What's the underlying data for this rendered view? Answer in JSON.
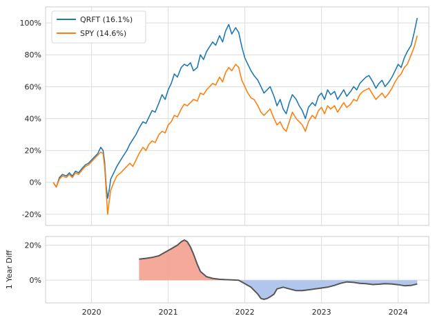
{
  "chart_data": [
    {
      "type": "line",
      "title": "",
      "xlabel": "",
      "ylabel": "",
      "x_ticks": [
        "2020",
        "2021",
        "2022",
        "2023",
        "2024"
      ],
      "y_ticks": [
        -20,
        0,
        20,
        40,
        60,
        80,
        100
      ],
      "y_tick_labels": [
        "-20%",
        "0%",
        "20%",
        "40%",
        "60%",
        "80%",
        "100%"
      ],
      "xlim": [
        2019.4,
        2024.4
      ],
      "ylim": [
        -27,
        110
      ],
      "legend": "top-left",
      "grid": true,
      "series": [
        {
          "name": "QRFT (16.1%)",
          "color": "#1f77b4",
          "x": [
            2019.5,
            2019.54,
            2019.58,
            2019.62,
            2019.67,
            2019.71,
            2019.75,
            2019.79,
            2019.83,
            2019.88,
            2019.92,
            2019.96,
            2020.0,
            2020.04,
            2020.08,
            2020.12,
            2020.15,
            2020.17,
            2020.19,
            2020.21,
            2020.23,
            2020.25,
            2020.29,
            2020.33,
            2020.38,
            2020.42,
            2020.46,
            2020.5,
            2020.54,
            2020.58,
            2020.62,
            2020.67,
            2020.71,
            2020.75,
            2020.79,
            2020.83,
            2020.88,
            2020.92,
            2020.96,
            2021.0,
            2021.04,
            2021.08,
            2021.12,
            2021.17,
            2021.21,
            2021.25,
            2021.29,
            2021.33,
            2021.38,
            2021.42,
            2021.46,
            2021.5,
            2021.54,
            2021.58,
            2021.62,
            2021.67,
            2021.71,
            2021.75,
            2021.79,
            2021.83,
            2021.88,
            2021.92,
            2021.96,
            2022.0,
            2022.04,
            2022.08,
            2022.12,
            2022.17,
            2022.21,
            2022.25,
            2022.29,
            2022.33,
            2022.38,
            2022.42,
            2022.46,
            2022.5,
            2022.54,
            2022.58,
            2022.62,
            2022.67,
            2022.71,
            2022.75,
            2022.79,
            2022.83,
            2022.88,
            2022.92,
            2022.96,
            2023.0,
            2023.04,
            2023.08,
            2023.12,
            2023.17,
            2023.21,
            2023.25,
            2023.29,
            2023.33,
            2023.38,
            2023.42,
            2023.46,
            2023.5,
            2023.54,
            2023.58,
            2023.62,
            2023.67,
            2023.71,
            2023.75,
            2023.79,
            2023.83,
            2023.88,
            2023.92,
            2023.96,
            2024.0,
            2024.04,
            2024.08,
            2024.12,
            2024.17,
            2024.21,
            2024.25
          ],
          "values": [
            0,
            -3,
            3,
            5,
            4,
            6,
            4,
            7,
            6,
            9,
            11,
            12,
            14,
            16,
            18,
            22,
            20,
            13,
            -2,
            -10,
            -5,
            2,
            6,
            10,
            14,
            17,
            20,
            24,
            27,
            30,
            34,
            38,
            37,
            41,
            45,
            44,
            50,
            55,
            52,
            58,
            62,
            68,
            66,
            72,
            74,
            73,
            75,
            70,
            72,
            80,
            77,
            82,
            85,
            88,
            86,
            92,
            88,
            95,
            99,
            93,
            97,
            94,
            85,
            78,
            74,
            70,
            67,
            64,
            60,
            56,
            58,
            60,
            54,
            48,
            52,
            46,
            43,
            50,
            55,
            52,
            48,
            45,
            40,
            47,
            50,
            48,
            54,
            56,
            52,
            58,
            55,
            57,
            52,
            55,
            58,
            54,
            57,
            60,
            58,
            62,
            64,
            66,
            67,
            63,
            59,
            62,
            64,
            60,
            63,
            66,
            70,
            74,
            72,
            78,
            82,
            86,
            94,
            103
          ]
        },
        {
          "name": "SPY (14.6%)",
          "color": "#ff7f0e",
          "x": [
            2019.5,
            2019.54,
            2019.58,
            2019.62,
            2019.67,
            2019.71,
            2019.75,
            2019.79,
            2019.83,
            2019.88,
            2019.92,
            2019.96,
            2020.0,
            2020.04,
            2020.08,
            2020.12,
            2020.15,
            2020.17,
            2020.19,
            2020.21,
            2020.23,
            2020.25,
            2020.29,
            2020.33,
            2020.38,
            2020.42,
            2020.46,
            2020.5,
            2020.54,
            2020.58,
            2020.62,
            2020.67,
            2020.71,
            2020.75,
            2020.79,
            2020.83,
            2020.88,
            2020.92,
            2020.96,
            2021.0,
            2021.04,
            2021.08,
            2021.12,
            2021.17,
            2021.21,
            2021.25,
            2021.29,
            2021.33,
            2021.38,
            2021.42,
            2021.46,
            2021.5,
            2021.54,
            2021.58,
            2021.62,
            2021.67,
            2021.71,
            2021.75,
            2021.79,
            2021.83,
            2021.88,
            2021.92,
            2021.96,
            2022.0,
            2022.04,
            2022.08,
            2022.12,
            2022.17,
            2022.21,
            2022.25,
            2022.29,
            2022.33,
            2022.38,
            2022.42,
            2022.46,
            2022.5,
            2022.54,
            2022.58,
            2022.62,
            2022.67,
            2022.71,
            2022.75,
            2022.79,
            2022.83,
            2022.88,
            2022.92,
            2022.96,
            2023.0,
            2023.04,
            2023.08,
            2023.12,
            2023.17,
            2023.21,
            2023.25,
            2023.29,
            2023.33,
            2023.38,
            2023.42,
            2023.46,
            2023.5,
            2023.54,
            2023.58,
            2023.62,
            2023.67,
            2023.71,
            2023.75,
            2023.79,
            2023.83,
            2023.88,
            2023.92,
            2023.96,
            2024.0,
            2024.04,
            2024.08,
            2024.12,
            2024.17,
            2024.21,
            2024.25
          ],
          "values": [
            0,
            -3,
            2,
            4,
            3,
            5,
            3,
            6,
            5,
            8,
            10,
            11,
            13,
            15,
            17,
            19,
            18,
            10,
            -5,
            -20,
            -12,
            -5,
            0,
            4,
            6,
            8,
            10,
            12,
            10,
            14,
            18,
            22,
            20,
            24,
            26,
            25,
            30,
            32,
            31,
            36,
            38,
            42,
            41,
            46,
            49,
            48,
            50,
            52,
            51,
            56,
            55,
            58,
            60,
            62,
            61,
            66,
            63,
            69,
            72,
            70,
            74,
            72,
            64,
            60,
            56,
            53,
            52,
            48,
            44,
            42,
            44,
            46,
            40,
            36,
            38,
            34,
            32,
            38,
            44,
            40,
            38,
            36,
            32,
            38,
            42,
            40,
            45,
            47,
            43,
            48,
            46,
            48,
            44,
            47,
            50,
            47,
            49,
            52,
            51,
            55,
            57,
            58,
            59,
            55,
            52,
            54,
            56,
            53,
            56,
            59,
            63,
            66,
            68,
            72,
            74,
            80,
            85,
            92
          ]
        }
      ]
    },
    {
      "type": "area",
      "title": "",
      "xlabel": "",
      "ylabel": "1 Year Diff",
      "x_ticks": [
        "2020",
        "2021",
        "2022",
        "2023",
        "2024"
      ],
      "y_ticks": [
        0,
        20
      ],
      "y_tick_labels": [
        "0%",
        "20%"
      ],
      "xlim": [
        2019.4,
        2024.4
      ],
      "ylim": [
        -13,
        25
      ],
      "grid": true,
      "positive_fill": "#f4a090",
      "negative_fill": "#a9c0eb",
      "line_color": "#555555",
      "x": [
        2020.62,
        2020.71,
        2020.79,
        2020.88,
        2020.96,
        2021.04,
        2021.12,
        2021.17,
        2021.21,
        2021.25,
        2021.29,
        2021.33,
        2021.38,
        2021.42,
        2021.5,
        2021.58,
        2021.67,
        2021.75,
        2021.83,
        2021.92,
        2022.0,
        2022.08,
        2022.17,
        2022.21,
        2022.25,
        2022.29,
        2022.33,
        2022.38,
        2022.42,
        2022.5,
        2022.58,
        2022.67,
        2022.75,
        2022.83,
        2022.92,
        2023.0,
        2023.08,
        2023.17,
        2023.25,
        2023.33,
        2023.42,
        2023.5,
        2023.58,
        2023.67,
        2023.75,
        2023.83,
        2023.92,
        2024.0,
        2024.08,
        2024.17,
        2024.25
      ],
      "values": [
        12,
        12.5,
        13,
        14,
        16,
        18,
        20,
        22,
        23,
        22,
        19,
        15,
        9,
        5,
        2,
        1,
        0.5,
        0.3,
        0.2,
        0,
        -2,
        -4,
        -8,
        -10.5,
        -11,
        -10.5,
        -9.5,
        -8,
        -5,
        -4,
        -5,
        -6,
        -6,
        -5.5,
        -5,
        -4.5,
        -4,
        -3,
        -1.8,
        -1,
        -1.3,
        -1.8,
        -2,
        -2.5,
        -2.3,
        -2,
        -2.2,
        -2.6,
        -3.2,
        -3,
        -2.2
      ]
    }
  ]
}
